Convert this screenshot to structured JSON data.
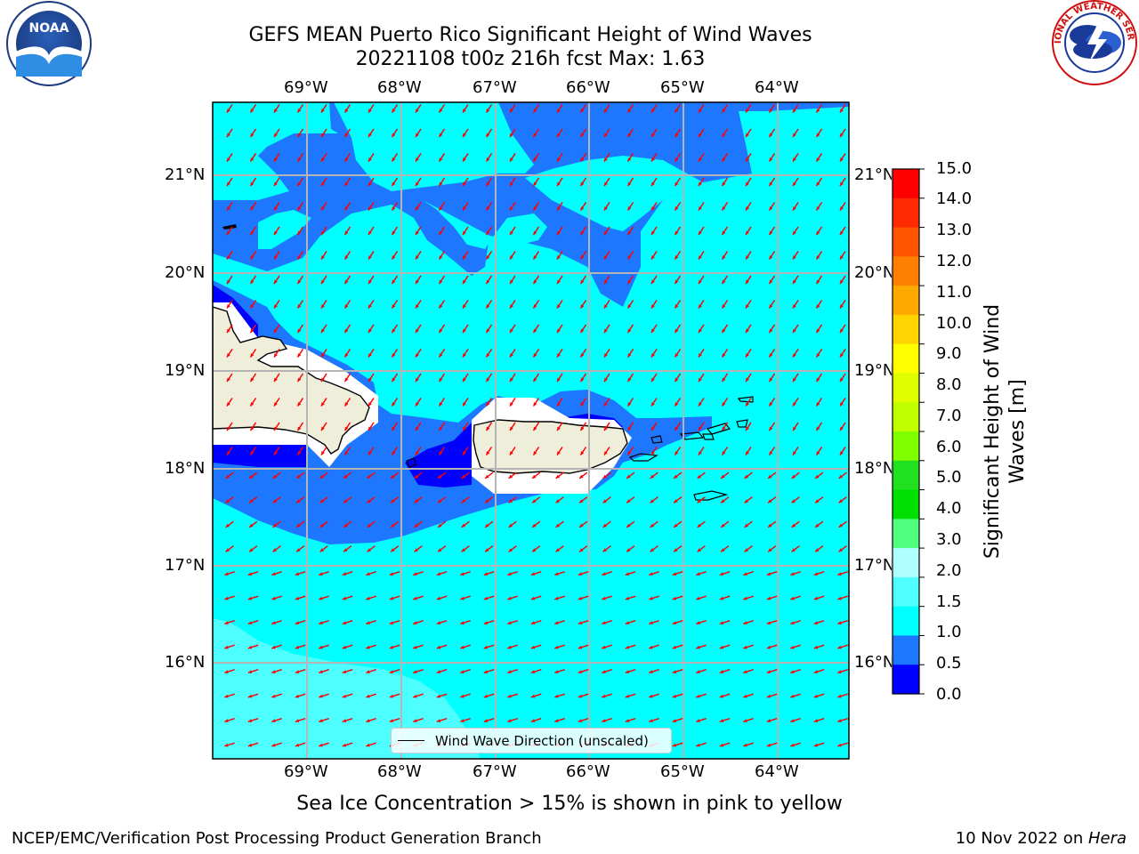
{
  "title": {
    "line1": "GEFS MEAN Puerto Rico Significant Height of Wind Waves",
    "line2": "20221108 t00z 216h fcst   Max: 1.63"
  },
  "lon_labels": [
    "69°W",
    "68°W",
    "67°W",
    "66°W",
    "65°W",
    "64°W"
  ],
  "lat_labels": [
    "21°N",
    "20°N",
    "19°N",
    "18°N",
    "17°N",
    "16°N"
  ],
  "legend": {
    "label": "Wind Wave Direction (unscaled)"
  },
  "colorbar": {
    "label": "Significant Height of Wind Waves [m]",
    "ticks": [
      "15.0",
      "14.0",
      "13.0",
      "12.0",
      "11.0",
      "10.0",
      "9.0",
      "8.0",
      "7.0",
      "6.0",
      "5.0",
      "4.0",
      "3.0",
      "2.0",
      "1.5",
      "1.0",
      "0.5",
      "0.0"
    ],
    "colors": [
      "#ff0000",
      "#ff2a00",
      "#ff5500",
      "#ff8000",
      "#ffaa00",
      "#ffd400",
      "#ffff00",
      "#dfff00",
      "#bfff00",
      "#80ff00",
      "#20e020",
      "#00e000",
      "#50ff80",
      "#b0ffff",
      "#50ffff",
      "#00ffff",
      "#1e78ff",
      "#0000ff"
    ]
  },
  "caption": "Sea Ice Concentration > 15% is shown in pink to yellow",
  "footer": {
    "left": "NCEP/EMC/Verification Post Processing Product Generation Branch",
    "right_prefix": "10 Nov 2022 on ",
    "right_machine": "Hera"
  },
  "logos": {
    "noaa": "NOAA",
    "nws": "NATIONAL WEATHER SERVICE"
  },
  "colors": {
    "sea_light": "#00ffff",
    "sea_mid": "#1e78ff",
    "sea_dark": "#0000ff",
    "sea_pale": "#4dffff",
    "land": "#efeedb",
    "arrow": "#ff0000"
  }
}
